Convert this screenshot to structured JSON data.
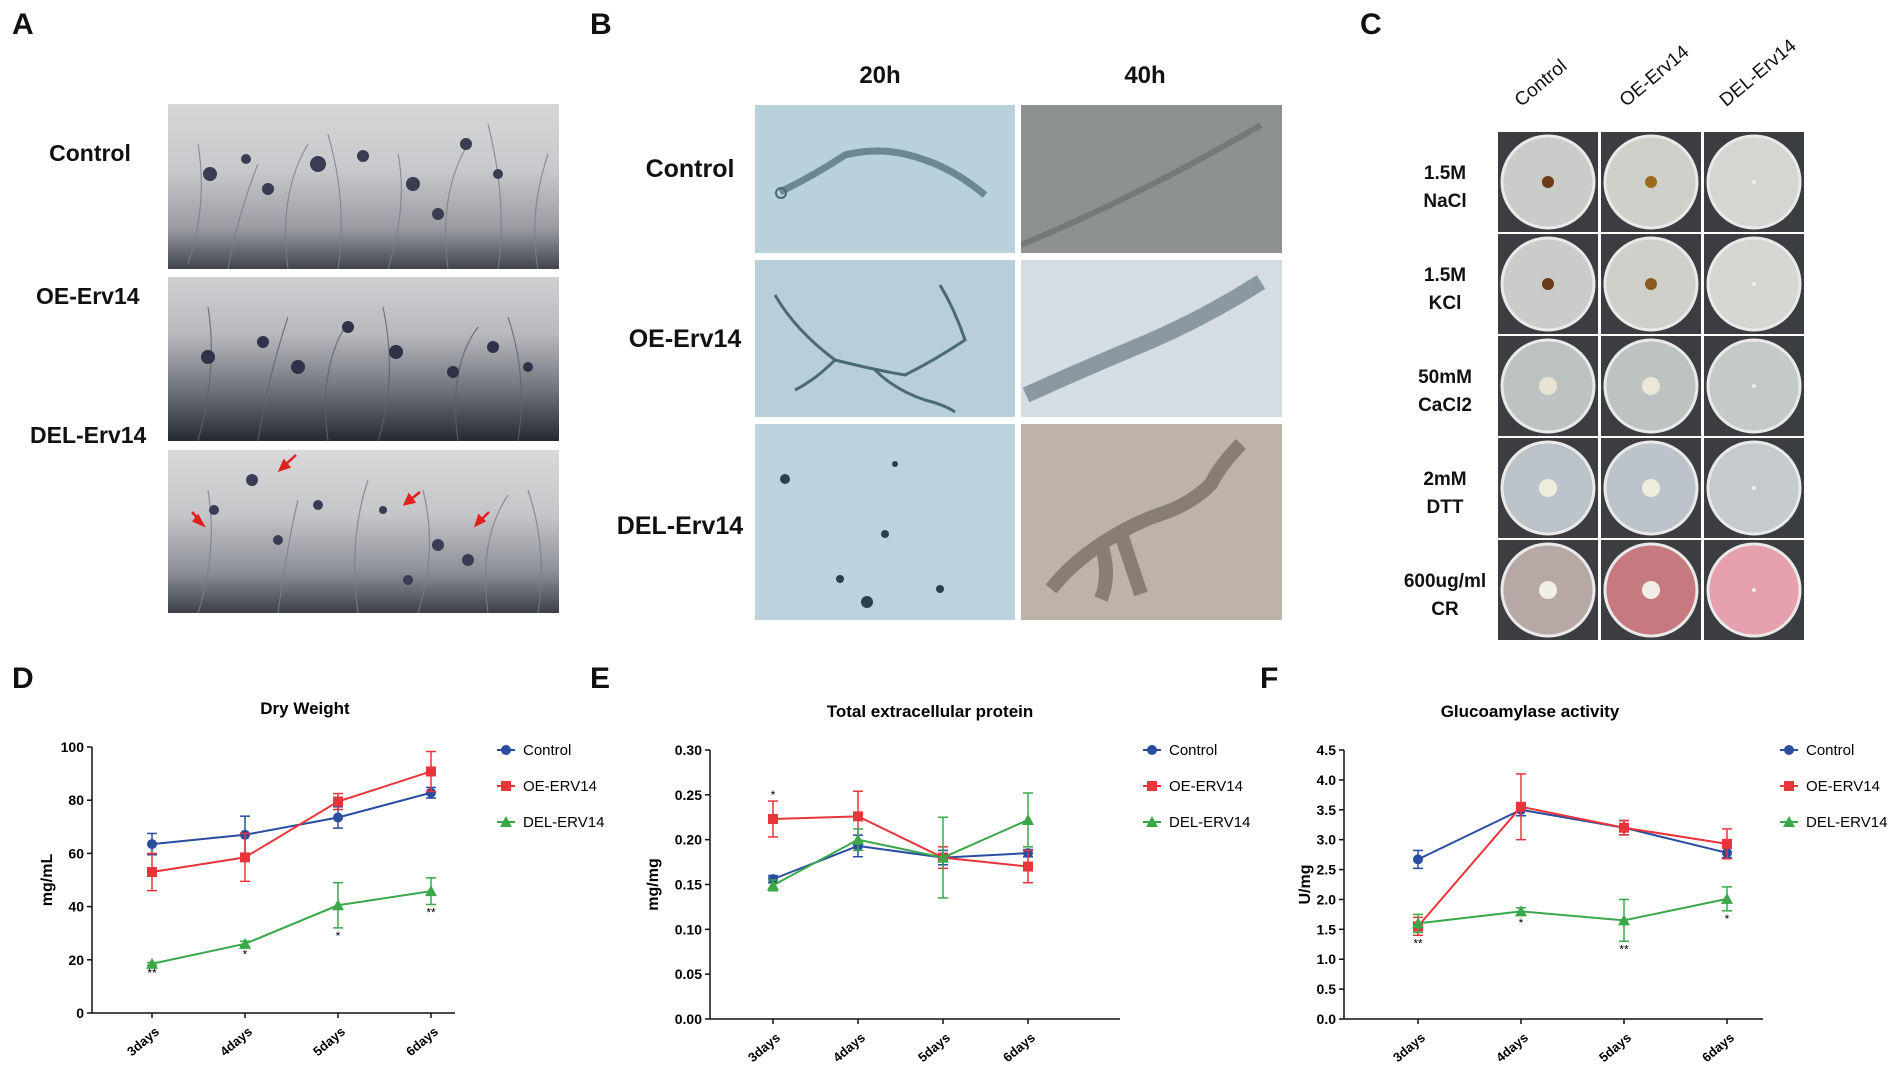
{
  "panels": {
    "A": {
      "letter": "A",
      "rows": [
        "Control",
        "OE-Erv14",
        "DEL-Erv14"
      ]
    },
    "B": {
      "letter": "B",
      "columns": [
        "20h",
        "40h"
      ],
      "rows": [
        "Control",
        "OE-Erv14",
        "DEL-Erv14"
      ]
    },
    "C": {
      "letter": "C",
      "columns": [
        "Control",
        "OE-Erv14",
        "DEL-Erv14"
      ],
      "conditions": [
        {
          "line1": "1.5M",
          "line2": "NaCl"
        },
        {
          "line1": "1.5M",
          "line2": "KCl"
        },
        {
          "line1": "50mM",
          "line2": "CaCl2"
        },
        {
          "line1": "2mM",
          "line2": "DTT"
        },
        {
          "line1": "600ug/ml",
          "line2": "CR"
        }
      ]
    },
    "D": {
      "letter": "D"
    },
    "E": {
      "letter": "E"
    },
    "F": {
      "letter": "F"
    }
  },
  "colors": {
    "control": "#2a4da0",
    "oe": "#e8353a",
    "del": "#3aa84a"
  },
  "chart_data": [
    {
      "type": "line",
      "title": "Dry Weight",
      "ylabel": "mg/mL",
      "xlabel": "",
      "categories": [
        "3days",
        "4days",
        "5days",
        "6days"
      ],
      "ylim": [
        0,
        100
      ],
      "yticks": [
        "0",
        "20",
        "40",
        "60",
        "80",
        "100"
      ],
      "series": [
        {
          "name": "Control",
          "values": [
            63.5,
            67,
            73.5,
            82.8
          ],
          "errors": [
            4,
            7,
            4,
            2
          ]
        },
        {
          "name": "OE-ERV14",
          "values": [
            53,
            58.5,
            79.5,
            90.8
          ],
          "errors": [
            7,
            9,
            3,
            7.5
          ]
        },
        {
          "name": "DEL-ERV14",
          "values": [
            18.5,
            26,
            40.5,
            45.8
          ],
          "errors": [
            0.5,
            1,
            8.5,
            5
          ]
        }
      ],
      "annotations": [
        {
          "category": "3days",
          "text": "**"
        },
        {
          "category": "4days",
          "text": "*"
        },
        {
          "category": "5days",
          "text": "*"
        },
        {
          "category": "6days",
          "text": "**"
        }
      ]
    },
    {
      "type": "line",
      "title": "Total extracellular protein",
      "ylabel": "mg/mg",
      "xlabel": "",
      "categories": [
        "3days",
        "4days",
        "5days",
        "6days"
      ],
      "ylim": [
        0,
        0.3
      ],
      "yticks": [
        "0.00",
        "0.05",
        "0.10",
        "0.15",
        "0.20",
        "0.25",
        "0.30"
      ],
      "series": [
        {
          "name": "Control",
          "values": [
            0.156,
            0.193,
            0.18,
            0.185
          ],
          "errors": [
            0.004,
            0.012,
            0.008,
            0.004
          ]
        },
        {
          "name": "OE-ERV14",
          "values": [
            0.223,
            0.226,
            0.18,
            0.17
          ],
          "errors": [
            0.02,
            0.028,
            0.012,
            0.018
          ]
        },
        {
          "name": "DEL-ERV14",
          "values": [
            0.149,
            0.2,
            0.18,
            0.222
          ],
          "errors": [
            0.006,
            0.012,
            0.045,
            0.03
          ]
        }
      ],
      "annotations": [
        {
          "category": "3days",
          "text": "*"
        }
      ]
    },
    {
      "type": "line",
      "title": "Glucoamylase activity",
      "ylabel": "U/mg",
      "xlabel": "",
      "categories": [
        "3days",
        "4days",
        "5days",
        "6days"
      ],
      "ylim": [
        0,
        4.5
      ],
      "yticks": [
        "0.0",
        "0.5",
        "1.0",
        "1.5",
        "2.0",
        "2.5",
        "3.0",
        "3.5",
        "4.0",
        "4.5"
      ],
      "series": [
        {
          "name": "Control",
          "values": [
            2.67,
            3.5,
            3.2,
            2.78
          ],
          "errors": [
            0.15,
            0.1,
            0.12,
            0.08
          ]
        },
        {
          "name": "OE-ERV14",
          "values": [
            1.55,
            3.55,
            3.2,
            2.93
          ],
          "errors": [
            0.15,
            0.55,
            0.12,
            0.25
          ]
        },
        {
          "name": "DEL-ERV14",
          "values": [
            1.6,
            1.8,
            1.65,
            2.01
          ],
          "errors": [
            0.15,
            0.06,
            0.35,
            0.2
          ]
        }
      ],
      "annotations": [
        {
          "category": "3days",
          "text": "**"
        },
        {
          "category": "4days",
          "text": "*"
        },
        {
          "category": "5days",
          "text": "**"
        },
        {
          "category": "6days",
          "text": "*"
        }
      ]
    }
  ]
}
